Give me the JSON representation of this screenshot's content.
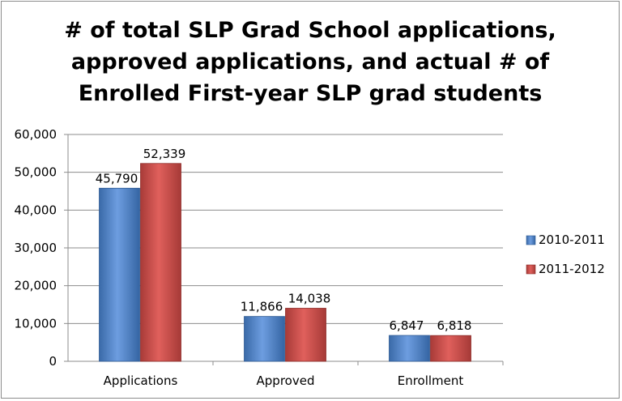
{
  "chart_data": {
    "type": "bar",
    "title": "# of total SLP Grad School applications,\napproved applications, and actual # of\nEnrolled First-year SLP grad students",
    "categories": [
      "Applications",
      "Approved",
      "Enrollment"
    ],
    "series": [
      {
        "name": "2010-2011",
        "values": [
          45790,
          11866,
          6847
        ],
        "labels": [
          "45,790",
          "11,866",
          "6,847"
        ],
        "color": "#4a7ebb"
      },
      {
        "name": "2011-2012",
        "values": [
          52339,
          14038,
          6818
        ],
        "labels": [
          "52,339",
          "14,038",
          "6,818"
        ],
        "color": "#c0504d"
      }
    ],
    "ylim": [
      0,
      60000
    ],
    "yticks": [
      0,
      10000,
      20000,
      30000,
      40000,
      50000,
      60000
    ],
    "ytick_labels": [
      "0",
      "10,000",
      "20,000",
      "30,000",
      "40,000",
      "50,000",
      "60,000"
    ],
    "grid": true,
    "legend_position": "right"
  }
}
